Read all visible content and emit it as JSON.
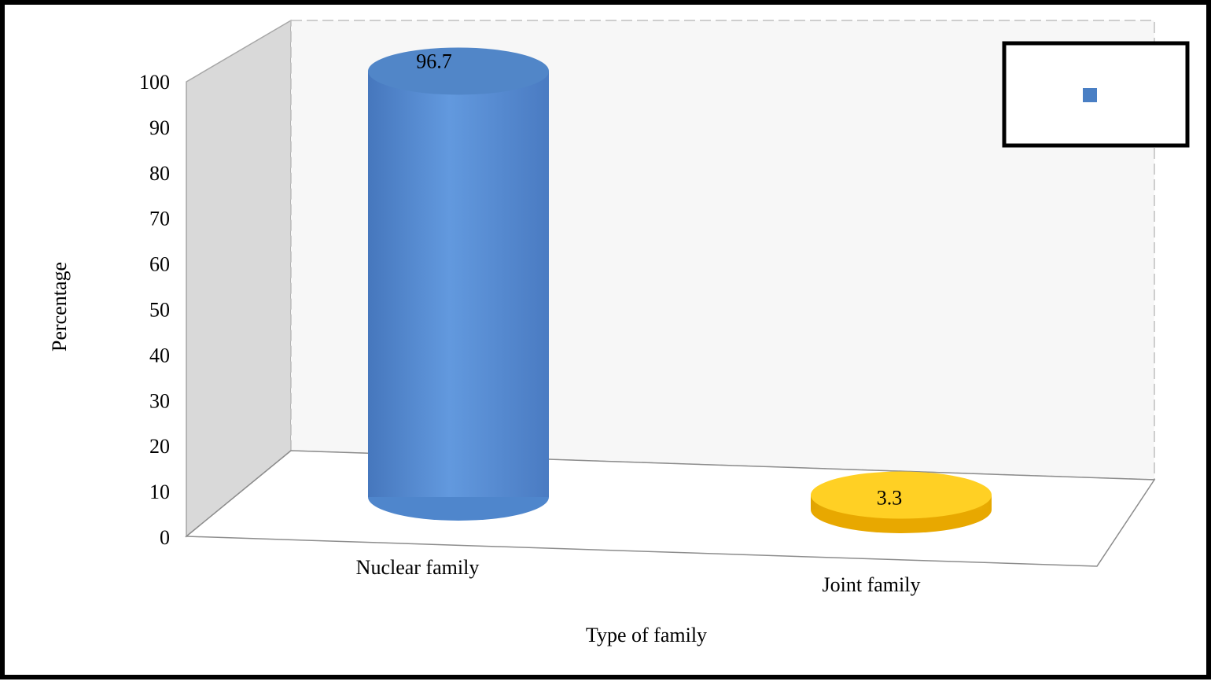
{
  "chart_data": {
    "type": "bar",
    "style": "3d-cylinder",
    "categories": [
      "Nuclear family",
      "Joint family"
    ],
    "values": [
      96.7,
      3.3
    ],
    "data_labels": [
      "96.7",
      "3.3"
    ],
    "bar_colors": [
      "#5b8fd1",
      "#ffc000"
    ],
    "xlabel": "Type of family",
    "ylabel": "Percentage",
    "ylim": [
      0,
      100
    ],
    "y_ticks": [
      "0",
      "10",
      "20",
      "30",
      "40",
      "50",
      "60",
      "70",
      "80",
      "90",
      "100"
    ],
    "grid": false,
    "legend": {
      "placement": "top-right",
      "entries": [
        {
          "color": "#4a7fc4"
        }
      ]
    }
  }
}
